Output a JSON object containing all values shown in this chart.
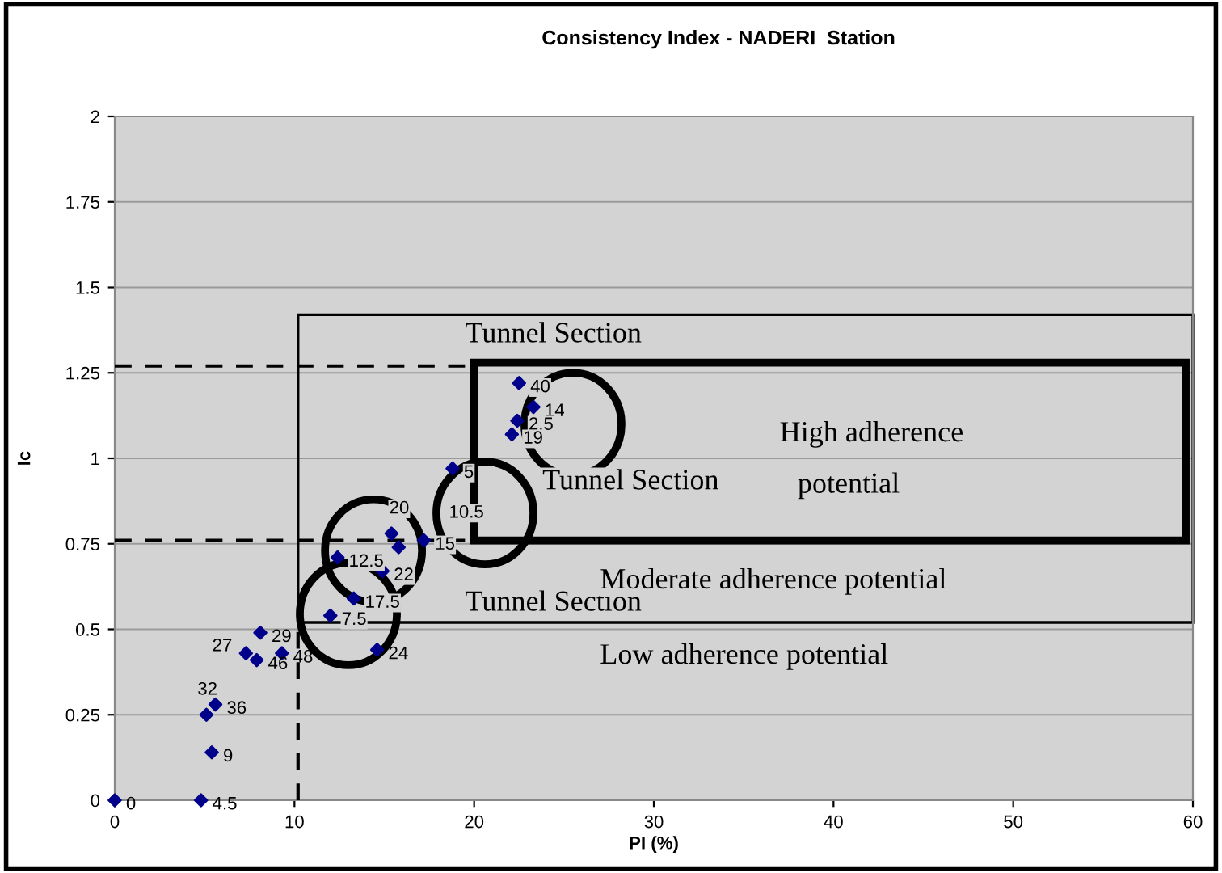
{
  "chart_data": {
    "type": "scatter",
    "title": "Consistency Index - NADERI  Station",
    "xlabel": "PI (%)",
    "ylabel": "Ic",
    "x": [
      0,
      4.8,
      5.4,
      5.1,
      5.6,
      7.3,
      7.9,
      8.1,
      9.3,
      12.0,
      14.6,
      12.4,
      14.9,
      13.3,
      15.4,
      15.8,
      17.2,
      18.8,
      22.5,
      23.3,
      22.4,
      22.1
    ],
    "values": [
      0,
      0,
      0.14,
      0.25,
      0.28,
      0.43,
      0.41,
      0.49,
      0.43,
      0.54,
      0.44,
      0.71,
      0.67,
      0.59,
      0.78,
      0.74,
      0.76,
      0.97,
      1.22,
      1.15,
      1.11,
      1.07
    ],
    "color": "#00008b",
    "marker": "diamond",
    "xlim": [
      0,
      60
    ],
    "ylim": [
      0,
      2
    ],
    "xticks": [
      0,
      10,
      20,
      30,
      40,
      50,
      60
    ],
    "yticks": [
      0,
      0.25,
      0.5,
      0.75,
      1,
      1.25,
      1.5,
      1.75,
      2
    ],
    "grid": "y",
    "legend": false,
    "ref_lines": [
      {
        "axis": "y",
        "value": 1.27,
        "line_style": "dashed",
        "color": "#000000"
      },
      {
        "axis": "y",
        "value": 0.76,
        "line_style": "dashed",
        "color": "#000000"
      },
      {
        "axis": "x",
        "value": 10.2,
        "line_style": "dashed",
        "color": "#000000"
      }
    ],
    "annotations": [
      {
        "text": "0",
        "x": 0,
        "y": 0
      },
      {
        "text": "4.5",
        "x": 4.8,
        "y": 0
      },
      {
        "text": "9",
        "x": 5.4,
        "y": 0.14
      },
      {
        "text": "32",
        "x": 5.1,
        "y": 0.25
      },
      {
        "text": "36",
        "x": 5.6,
        "y": 0.28
      },
      {
        "text": "27",
        "x": 7.3,
        "y": 0.43
      },
      {
        "text": "46",
        "x": 7.9,
        "y": 0.41
      },
      {
        "text": "29",
        "x": 8.1,
        "y": 0.49
      },
      {
        "text": "48",
        "x": 9.3,
        "y": 0.43
      },
      {
        "text": "7.5",
        "x": 12.0,
        "y": 0.54
      },
      {
        "text": "24",
        "x": 14.6,
        "y": 0.44
      },
      {
        "text": "12.5",
        "x": 12.4,
        "y": 0.71
      },
      {
        "text": "22",
        "x": 14.9,
        "y": 0.67
      },
      {
        "text": "17.5",
        "x": 13.3,
        "y": 0.59
      },
      {
        "text": "20",
        "x": 15.4,
        "y": 0.78
      },
      {
        "text": "15",
        "x": 17.2,
        "y": 0.76
      },
      {
        "text": "5",
        "x": 18.8,
        "y": 0.97
      },
      {
        "text": "40",
        "x": 22.5,
        "y": 1.22
      },
      {
        "text": "14",
        "x": 23.3,
        "y": 1.15
      },
      {
        "text": "2.5",
        "x": 22.4,
        "y": 1.11
      },
      {
        "text": "19",
        "x": 22.1,
        "y": 1.07
      },
      "Tunnel Section",
      "Tunnel Section",
      "Tunnel Section",
      "High adherence",
      "potential",
      "Moderate adherence potential",
      "Low adherence potential",
      "10.5"
    ]
  }
}
